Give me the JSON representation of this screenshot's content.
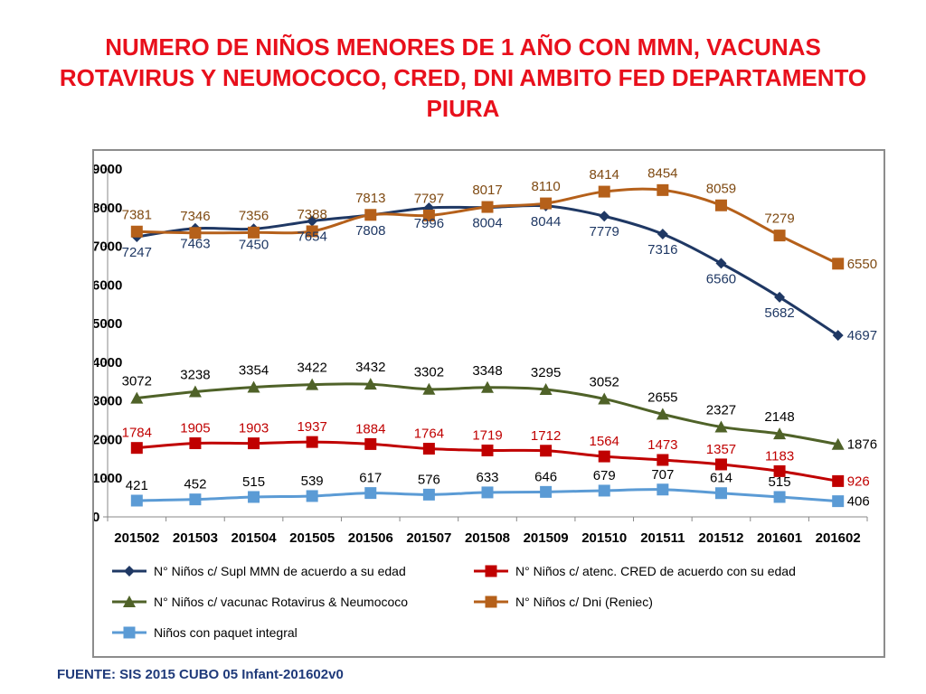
{
  "title": "NUMERO DE NIÑOS MENORES DE 1 AÑO CON MMN, VACUNAS ROTAVIRUS Y NEUMOCOCO, CRED, DNI AMBITO FED DEPARTAMENTO PIURA",
  "source": "FUENTE: SIS 2015 CUBO 05 Infant-201602v0",
  "chart_data": {
    "type": "line",
    "title": "",
    "xlabel": "",
    "ylabel": "",
    "ylim": [
      0,
      9000
    ],
    "yticks": [
      0,
      1000,
      2000,
      3000,
      4000,
      5000,
      6000,
      7000,
      8000,
      9000
    ],
    "grid": false,
    "legend_position": "bottom",
    "categories": [
      "201502",
      "201503",
      "201504",
      "201505",
      "201506",
      "201507",
      "201508",
      "201509",
      "201510",
      "201511",
      "201512",
      "201601",
      "201602"
    ],
    "series": [
      {
        "name": "N° Niños c/ Supl MMN de acuerdo a su edad",
        "color": "#1f3864",
        "marker": "diamond",
        "values": [
          7247,
          7463,
          7450,
          7654,
          7808,
          7996,
          8004,
          8044,
          7779,
          7316,
          6560,
          5682,
          4697
        ]
      },
      {
        "name": "N° Niños c/ atenc. CRED de acuerdo con su edad",
        "color": "#c00000",
        "marker": "square",
        "values": [
          1784,
          1905,
          1903,
          1937,
          1884,
          1764,
          1719,
          1712,
          1564,
          1473,
          1357,
          1183,
          926
        ]
      },
      {
        "name": "N° Niños c/ vacunac Rotavirus & Neumococo",
        "color": "#4f6228",
        "marker": "triangle",
        "values": [
          3072,
          3238,
          3354,
          3422,
          3432,
          3302,
          3348,
          3295,
          3052,
          2655,
          2327,
          2148,
          1876
        ]
      },
      {
        "name": "N° Niños c/ Dni (Reniec)",
        "color": "#b5601a",
        "marker": "square",
        "values": [
          7381,
          7346,
          7356,
          7388,
          7813,
          7797,
          8017,
          8110,
          8414,
          8454,
          8059,
          7279,
          6550
        ]
      },
      {
        "name": "Niños con paquet integral",
        "color": "#5b9bd5",
        "marker": "square",
        "values": [
          421,
          452,
          515,
          539,
          617,
          576,
          633,
          646,
          679,
          707,
          614,
          515,
          406
        ]
      }
    ]
  }
}
